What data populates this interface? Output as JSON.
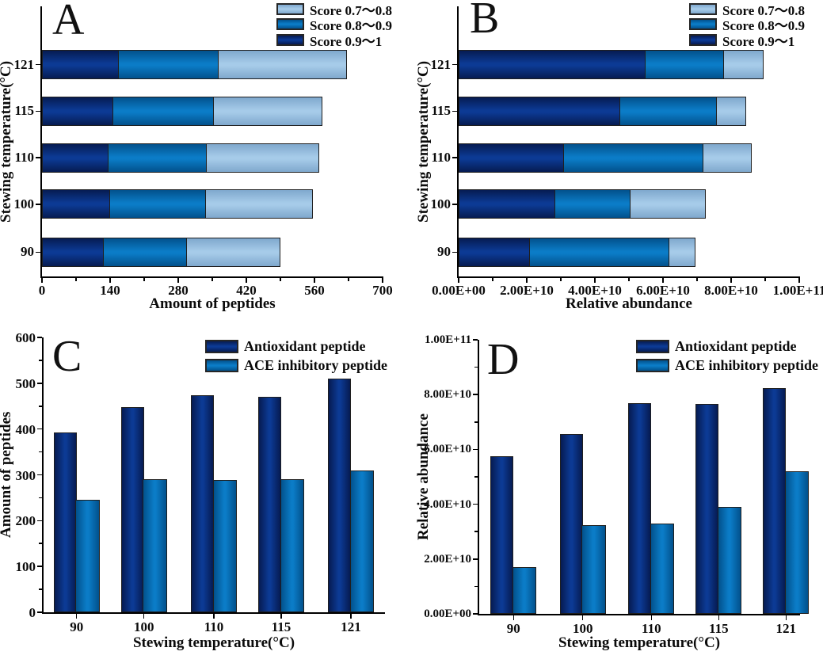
{
  "figure": {
    "background": "#ffffff",
    "axis_color": "#000000",
    "bar_border_color": "#1f1f1f",
    "text_color": "#0b0b0b"
  },
  "colors": {
    "score_0_9_1": "#0c3a94",
    "score_0_8_0_9": "#0b7cc7",
    "score_0_7_0_8": "#a6cbe9",
    "antioxidant_peptide": "#0c3a94",
    "ace_inhibitory_peptide": "#0b7cc7"
  },
  "chart_data": [
    {
      "panel_label": "A",
      "type": "bar",
      "orientation": "horizontal",
      "stacked": true,
      "grid": false,
      "legend_position": "top-right",
      "legend_reversed": true,
      "xlabel": "Amount of peptides",
      "ylabel": "Stewing temperature(°C)",
      "categories": [
        "90",
        "100",
        "110",
        "115",
        "121"
      ],
      "series": [
        {
          "name": "Score 0.9～1",
          "color": "#0c3a94",
          "edge_color": "#061b52",
          "values": [
            128,
            140,
            137,
            147,
            158
          ]
        },
        {
          "name": "Score 0.8～0.9",
          "color": "#0b7cc7",
          "edge_color": "#02518c",
          "values": [
            170,
            198,
            203,
            207,
            206
          ]
        },
        {
          "name": "Score 0.7～0.8",
          "color": "#a6cbe9",
          "edge_color": "#7fa8cd",
          "values": [
            192,
            218,
            229,
            223,
            263
          ]
        }
      ],
      "xlim": [
        0,
        700
      ],
      "x_ticks": {
        "values": [
          0,
          140,
          280,
          420,
          560,
          700
        ],
        "labels": [
          "0",
          "140",
          "280",
          "420",
          "560",
          "700"
        ]
      }
    },
    {
      "panel_label": "B",
      "type": "bar",
      "orientation": "horizontal",
      "stacked": true,
      "grid": false,
      "legend_position": "top-right",
      "legend_reversed": true,
      "xlabel": "Relative abundance",
      "ylabel": "Stewing temperature(°C)",
      "categories": [
        "90",
        "100",
        "110",
        "115",
        "121"
      ],
      "series": [
        {
          "name": "Score 0.9～1",
          "color": "#0c3a94",
          "edge_color": "#061b52",
          "values": [
            21000000000,
            28500000000,
            31000000000,
            47500000000,
            55000000000
          ]
        },
        {
          "name": "Score 0.8～0.9",
          "color": "#0b7cc7",
          "edge_color": "#02518c",
          "values": [
            41000000000,
            22000000000,
            41000000000,
            28500000000,
            23000000000
          ]
        },
        {
          "name": "Score 0.7～0.8",
          "color": "#a6cbe9",
          "edge_color": "#7fa8cd",
          "values": [
            7500000000,
            22000000000,
            14000000000,
            8500000000,
            11500000000
          ]
        }
      ],
      "xlim": [
        0,
        100000000000
      ],
      "x_ticks": {
        "values": [
          0,
          20000000000,
          40000000000,
          60000000000,
          80000000000,
          100000000000
        ],
        "labels": [
          "0.00E+00",
          "2.00E+10",
          "4.00E+10",
          "6.00E+10",
          "8.00E+10",
          "1.00E+11"
        ]
      }
    },
    {
      "panel_label": "C",
      "type": "bar",
      "orientation": "vertical",
      "stacked": false,
      "grid": false,
      "legend_position": "top-right",
      "legend_reversed": false,
      "xlabel": "Stewing temperature(°C)",
      "ylabel": "Amount of peptides",
      "categories": [
        "90",
        "100",
        "110",
        "115",
        "121"
      ],
      "series": [
        {
          "name": "Antioxidant peptide",
          "color": "#0c3a94",
          "edge_color": "#061b52",
          "values": [
            392,
            447,
            473,
            470,
            510
          ]
        },
        {
          "name": "ACE inhibitory peptide",
          "color": "#0b7cc7",
          "edge_color": "#02518c",
          "values": [
            245,
            291,
            288,
            291,
            310
          ]
        }
      ],
      "ylim": [
        0,
        600
      ],
      "y_ticks": {
        "values": [
          0,
          100,
          200,
          300,
          400,
          500,
          600
        ],
        "labels": [
          "0",
          "100",
          "200",
          "300",
          "400",
          "500",
          "600"
        ]
      }
    },
    {
      "panel_label": "D",
      "type": "bar",
      "orientation": "vertical",
      "stacked": false,
      "grid": false,
      "legend_position": "top-right",
      "legend_reversed": false,
      "xlabel": "Stewing temperature(°C)",
      "ylabel": "Relative abundance",
      "categories": [
        "90",
        "100",
        "110",
        "115",
        "121"
      ],
      "series": [
        {
          "name": "Antioxidant peptide",
          "color": "#0c3a94",
          "edge_color": "#061b52",
          "values": [
            57500000000,
            65500000000,
            77000000000,
            76500000000,
            82500000000
          ]
        },
        {
          "name": "ACE inhibitory peptide",
          "color": "#0b7cc7",
          "edge_color": "#02518c",
          "values": [
            17000000000,
            32500000000,
            33000000000,
            39000000000,
            52000000000
          ]
        }
      ],
      "ylim": [
        0,
        100000000000
      ],
      "y_ticks": {
        "values": [
          0,
          20000000000,
          40000000000,
          60000000000,
          80000000000,
          100000000000
        ],
        "labels": [
          "0.00E+00",
          "2.00E+10",
          "4.00E+10",
          "6.00E+10",
          "8.00E+10",
          "1.00E+11"
        ]
      }
    }
  ]
}
